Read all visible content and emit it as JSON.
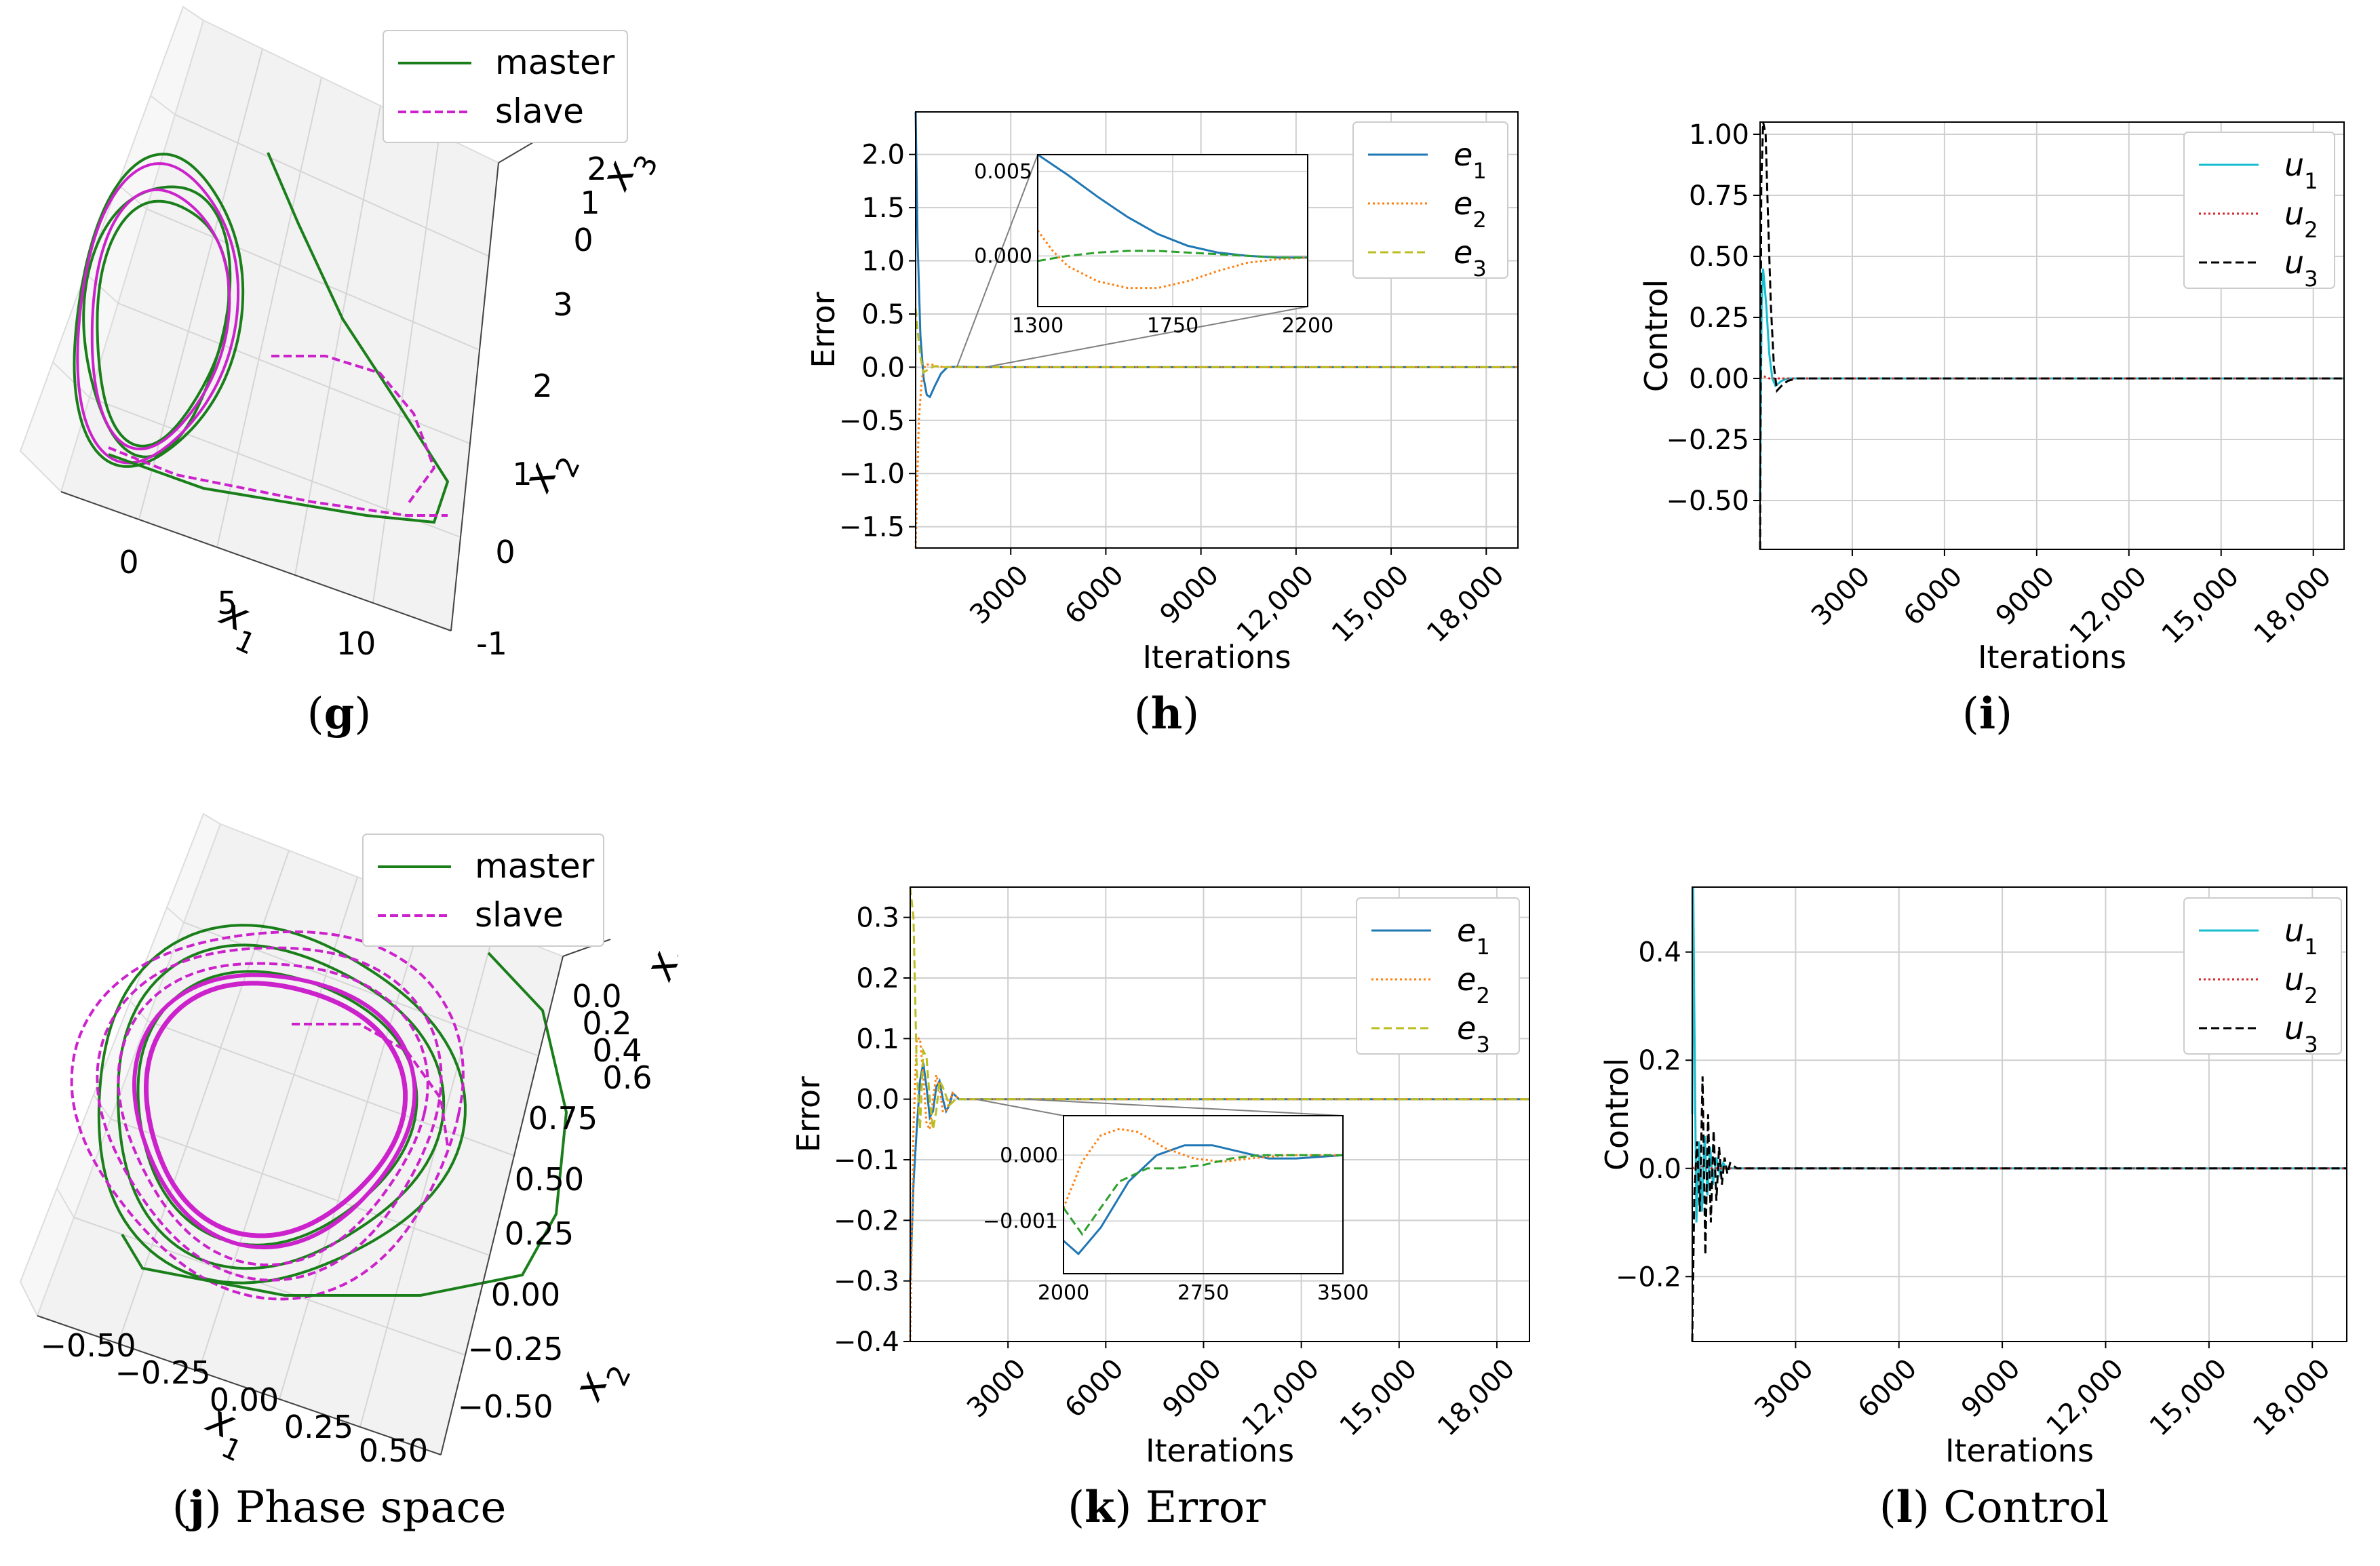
{
  "panels": [
    {
      "id": "g",
      "caption_letter": "g",
      "caption_text": "",
      "chart_data": {
        "type": "line3d",
        "legend": [
          {
            "name": "master",
            "color": "#1a7f1a",
            "dash": "solid"
          },
          {
            "name": "slave",
            "color": "#cc22cc",
            "dash": "dashed"
          }
        ],
        "legend_position": "top-right",
        "axes": {
          "x1": {
            "label": "x1",
            "ticks": [
              "0",
              "5",
              "10"
            ]
          },
          "x2": {
            "label": "x2",
            "ticks": [
              "-1",
              "0",
              "1",
              "2",
              "3"
            ]
          },
          "x3": {
            "label": "x3",
            "ticks": [
              "0",
              "1",
              "2"
            ]
          }
        },
        "grid": true
      }
    },
    {
      "id": "h",
      "caption_letter": "h",
      "caption_text": "",
      "chart_data": {
        "type": "line",
        "xlabel": "Iterations",
        "ylabel": "Error",
        "xlim": [
          0,
          19000
        ],
        "ylim": [
          -1.7,
          2.4
        ],
        "xticks": [
          3000,
          6000,
          9000,
          12000,
          15000,
          18000
        ],
        "xtick_labels": [
          "3000",
          "6000",
          "9000",
          "12,000",
          "15,000",
          "18,000"
        ],
        "yticks": [
          -1.5,
          -1.0,
          -0.5,
          0.0,
          0.5,
          1.0,
          1.5,
          2.0
        ],
        "ytick_labels": [
          "−1.5",
          "−1.0",
          "−0.5",
          "0.0",
          "0.5",
          "1.0",
          "1.5",
          "2.0"
        ],
        "grid": true,
        "legend_position": "top-right",
        "series": [
          {
            "name": "e1",
            "color": "#1f77b4",
            "dash": "solid",
            "x": [
              0,
              60,
              150,
              250,
              350,
              450,
              600,
              800,
              1000,
              1300,
              1600,
              2000,
              19000
            ],
            "y": [
              2.4,
              1.2,
              0.3,
              -0.1,
              -0.26,
              -0.28,
              -0.18,
              -0.06,
              0.0,
              0.004,
              0.002,
              0.0,
              0.0
            ]
          },
          {
            "name": "e2",
            "color": "#ff7f0e",
            "dash": "dotted",
            "x": [
              0,
              40,
              100,
              200,
              300,
              450,
              650,
              900,
              1300,
              2000,
              19000
            ],
            "y": [
              -1.7,
              -1.2,
              -0.5,
              -0.1,
              0.02,
              0.03,
              0.01,
              0.0,
              0.0,
              0.0,
              0.0
            ]
          },
          {
            "name": "e3",
            "color": "#bcbd22",
            "dash": "dashed",
            "x": [
              0,
              60,
              150,
              250,
              400,
              600,
              900,
              1300,
              19000
            ],
            "y": [
              0.55,
              0.35,
              0.1,
              -0.05,
              -0.02,
              0.01,
              0.0,
              0.0,
              0.0
            ]
          }
        ],
        "inset": {
          "xlim": [
            1300,
            2200
          ],
          "ylim": [
            -0.003,
            0.006
          ],
          "xticks": [
            1300,
            1750,
            2200
          ],
          "xtick_labels": [
            "1300",
            "1750",
            "2200"
          ],
          "yticks": [
            0.0,
            0.005
          ],
          "ytick_labels": [
            "0.000",
            "0.005"
          ],
          "series": [
            {
              "name": "e1",
              "x": [
                1300,
                1400,
                1500,
                1600,
                1700,
                1800,
                1900,
                2000,
                2100,
                2200
              ],
              "y": [
                0.006,
                0.0048,
                0.0035,
                0.0023,
                0.0013,
                0.0006,
                0.0002,
                0.0,
                -0.0001,
                -0.0001
              ]
            },
            {
              "name": "e2",
              "x": [
                1300,
                1350,
                1400,
                1500,
                1600,
                1700,
                1800,
                1900,
                2000,
                2100,
                2200
              ],
              "y": [
                0.0015,
                0.0003,
                -0.0006,
                -0.0015,
                -0.0019,
                -0.0019,
                -0.0015,
                -0.0009,
                -0.0004,
                -0.0002,
                -0.0001
              ]
            },
            {
              "name": "e3",
              "x": [
                1300,
                1400,
                1500,
                1600,
                1700,
                1800,
                1900,
                2000,
                2100,
                2200
              ],
              "y": [
                -0.0003,
                0.0,
                0.0002,
                0.0003,
                0.0003,
                0.0002,
                0.0001,
                0.0,
                -0.0001,
                -0.0001
              ]
            }
          ]
        }
      }
    },
    {
      "id": "i",
      "caption_letter": "i",
      "caption_text": "",
      "chart_data": {
        "type": "line",
        "xlabel": "Iterations",
        "ylabel": "Control",
        "xlim": [
          0,
          19000
        ],
        "ylim": [
          -0.7,
          1.05
        ],
        "xticks": [
          3000,
          6000,
          9000,
          12000,
          15000,
          18000
        ],
        "xtick_labels": [
          "3000",
          "6000",
          "9000",
          "12,000",
          "15,000",
          "18,000"
        ],
        "yticks": [
          -0.5,
          -0.25,
          0.0,
          0.25,
          0.5,
          0.75,
          1.0
        ],
        "ytick_labels": [
          "−0.50",
          "−0.25",
          "0.00",
          "0.25",
          "0.50",
          "0.75",
          "1.00"
        ],
        "grid": true,
        "legend_position": "top-right",
        "series": [
          {
            "name": "u1",
            "color": "#17becf",
            "dash": "solid",
            "x": [
              0,
              50,
              100,
              200,
              300,
              400,
              500,
              700,
              900,
              19000
            ],
            "y": [
              -0.5,
              0.3,
              0.45,
              0.3,
              0.1,
              0.0,
              -0.03,
              -0.01,
              0.0,
              0.0
            ]
          },
          {
            "name": "u2",
            "color": "#d62728",
            "dash": "dotted",
            "x": [
              0,
              100,
              300,
              500,
              19000
            ],
            "y": [
              0.0,
              0.01,
              0.0,
              0.0,
              0.0
            ]
          },
          {
            "name": "u3",
            "color": "#000000",
            "dash": "dashed",
            "x": [
              0,
              40,
              100,
              180,
              250,
              350,
              450,
              550,
              700,
              900,
              1200,
              19000
            ],
            "y": [
              -0.7,
              0.8,
              1.05,
              1.0,
              0.7,
              0.3,
              0.05,
              -0.05,
              -0.03,
              -0.01,
              0.0,
              0.0
            ]
          }
        ]
      }
    },
    {
      "id": "j",
      "caption_letter": "j",
      "caption_text": "Phase space",
      "chart_data": {
        "type": "line3d",
        "legend": [
          {
            "name": "master",
            "color": "#1a7f1a",
            "dash": "solid"
          },
          {
            "name": "slave",
            "color": "#cc22cc",
            "dash": "dashed"
          }
        ],
        "legend_position": "top-right",
        "axes": {
          "x1": {
            "label": "x1",
            "ticks": [
              "−0.50",
              "−0.25",
              "0.00",
              "0.25",
              "0.50"
            ]
          },
          "x2": {
            "label": "x2",
            "ticks": [
              "−0.50",
              "−0.25",
              "0.00",
              "0.25",
              "0.50",
              "0.75"
            ]
          },
          "x3": {
            "label": "x3",
            "ticks": [
              "0.0",
              "0.2",
              "0.4",
              "0.6"
            ]
          }
        },
        "grid": true
      }
    },
    {
      "id": "k",
      "caption_letter": "k",
      "caption_text": "Error",
      "chart_data": {
        "type": "line",
        "xlabel": "Iterations",
        "ylabel": "Error",
        "xlim": [
          0,
          19000
        ],
        "ylim": [
          -0.4,
          0.35
        ],
        "xticks": [
          3000,
          6000,
          9000,
          12000,
          15000,
          18000
        ],
        "xtick_labels": [
          "3000",
          "6000",
          "9000",
          "12,000",
          "15,000",
          "18,000"
        ],
        "yticks": [
          -0.4,
          -0.3,
          -0.2,
          -0.1,
          0.0,
          0.1,
          0.2,
          0.3
        ],
        "ytick_labels": [
          "−0.4",
          "−0.3",
          "−0.2",
          "−0.1",
          "0.0",
          "0.1",
          "0.2",
          "0.3"
        ],
        "grid": true,
        "legend_position": "top-right",
        "series": [
          {
            "name": "e1",
            "color": "#1f77b4",
            "dash": "solid",
            "x": [
              0,
              100,
              200,
              300,
              400,
              500,
              600,
              700,
              800,
              900,
              1000,
              1100,
              1200,
              1300,
              1500,
              1700,
              2000,
              19000
            ],
            "y": [
              -0.3,
              -0.14,
              -0.05,
              0.03,
              0.06,
              0.02,
              -0.03,
              -0.02,
              0.02,
              0.03,
              0.0,
              -0.02,
              -0.01,
              0.01,
              0.0,
              0.0,
              0.0,
              0.0
            ]
          },
          {
            "name": "e2",
            "color": "#ff7f0e",
            "dash": "dotted",
            "x": [
              0,
              100,
              200,
              300,
              400,
              500,
              600,
              700,
              800,
              900,
              1000,
              1100,
              1300,
              1500,
              2000,
              19000
            ],
            "y": [
              -0.4,
              -0.05,
              0.1,
              0.1,
              0.04,
              -0.04,
              -0.05,
              0.0,
              0.04,
              0.02,
              -0.02,
              -0.02,
              0.01,
              0.0,
              0.0,
              0.0
            ]
          },
          {
            "name": "e3",
            "color": "#bcbd22",
            "dash": "dashed",
            "x": [
              0,
              100,
              200,
              300,
              400,
              500,
              600,
              700,
              800,
              900,
              1000,
              1200,
              1400,
              2000,
              19000
            ],
            "y": [
              0.35,
              0.3,
              0.05,
              -0.05,
              0.08,
              0.07,
              0.0,
              -0.05,
              -0.02,
              0.03,
              0.02,
              -0.01,
              0.0,
              0.0,
              0.0
            ]
          }
        ],
        "inset": {
          "xlim": [
            2000,
            3500
          ],
          "ylim": [
            -0.0018,
            0.0006
          ],
          "xticks": [
            2000,
            2750,
            3500
          ],
          "xtick_labels": [
            "2000",
            "2750",
            "3500"
          ],
          "yticks": [
            -0.001,
            0.0
          ],
          "ytick_labels": [
            "−0.001",
            "0.000"
          ],
          "series": [
            {
              "name": "e1",
              "x": [
                2000,
                2080,
                2200,
                2350,
                2500,
                2650,
                2800,
                2950,
                3100,
                3250,
                3500
              ],
              "y": [
                -0.0013,
                -0.0015,
                -0.0011,
                -0.0004,
                0.0,
                0.00015,
                0.00015,
                5e-05,
                -5e-05,
                -5e-05,
                0.0
              ]
            },
            {
              "name": "e2",
              "x": [
                2000,
                2100,
                2200,
                2300,
                2400,
                2550,
                2700,
                2850,
                3000,
                3200,
                3500
              ],
              "y": [
                -0.0008,
                -0.0001,
                0.0003,
                0.0004,
                0.00035,
                0.0001,
                -5e-05,
                -0.0001,
                -5e-05,
                0.0,
                0.0
              ]
            },
            {
              "name": "e3",
              "x": [
                2000,
                2100,
                2200,
                2300,
                2450,
                2600,
                2750,
                2900,
                3050,
                3250,
                3500
              ],
              "y": [
                -0.0008,
                -0.0012,
                -0.0008,
                -0.0004,
                -0.0002,
                -0.0002,
                -0.00015,
                -5e-05,
                0.0,
                0.0,
                0.0
              ]
            }
          ]
        }
      }
    },
    {
      "id": "l",
      "caption_letter": "l",
      "caption_text": "Control",
      "chart_data": {
        "type": "line",
        "xlabel": "Iterations",
        "ylabel": "Control",
        "xlim": [
          0,
          19000
        ],
        "ylim": [
          -0.32,
          0.52
        ],
        "xticks": [
          3000,
          6000,
          9000,
          12000,
          15000,
          18000
        ],
        "xtick_labels": [
          "3000",
          "6000",
          "9000",
          "12,000",
          "15,000",
          "18,000"
        ],
        "yticks": [
          -0.2,
          0.0,
          0.2,
          0.4
        ],
        "ytick_labels": [
          "−0.2",
          "0.0",
          "0.2",
          "0.4"
        ],
        "grid": true,
        "legend_position": "top-right",
        "series": [
          {
            "name": "u1",
            "color": "#17becf",
            "dash": "solid",
            "x": [
              0,
              30,
              60,
              120,
              200,
              280,
              360,
              440,
              520,
              600,
              700,
              800,
              900,
              1000,
              1200,
              1500,
              19000
            ],
            "y": [
              0.1,
              0.52,
              0.3,
              -0.1,
              0.05,
              -0.08,
              0.06,
              -0.05,
              0.04,
              -0.03,
              0.02,
              -0.01,
              0.01,
              0.0,
              0.0,
              0.0,
              0.0
            ]
          },
          {
            "name": "u2",
            "color": "#d62728",
            "dash": "dotted",
            "x": [
              0,
              200,
              500,
              19000
            ],
            "y": [
              0.0,
              0.005,
              0.0,
              0.0
            ]
          },
          {
            "name": "u3",
            "color": "#000000",
            "dash": "dashed",
            "x": [
              0,
              60,
              140,
              220,
              300,
              380,
              460,
              540,
              620,
              700,
              780,
              860,
              940,
              1020,
              1100,
              1300,
              1600,
              19000
            ],
            "y": [
              -0.32,
              -0.05,
              0.05,
              -0.08,
              0.17,
              -0.16,
              0.1,
              -0.1,
              0.07,
              -0.06,
              0.04,
              -0.03,
              0.02,
              -0.01,
              0.01,
              0.0,
              0.0,
              0.0
            ]
          }
        ]
      }
    }
  ]
}
